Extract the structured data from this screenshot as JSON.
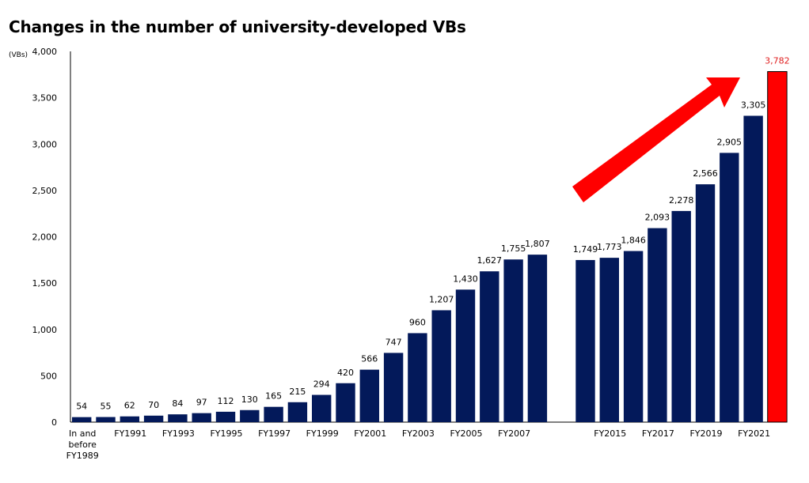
{
  "chart_data": {
    "type": "bar",
    "title": "Changes in the number of university-developed VBs",
    "ylabel": "(VBs)",
    "xlabel": "",
    "ylim": [
      0,
      4000
    ],
    "yticks": [
      "0",
      "500",
      "1,000",
      "1,500",
      "2,000",
      "2,500",
      "3,000",
      "3,500",
      "4,000"
    ],
    "categories": [
      "In and before FY1989",
      "FY1990",
      "FY1991",
      "FY1992",
      "FY1993",
      "FY1994",
      "FY1995",
      "FY1996",
      "FY1997",
      "FY1998",
      "FY1999",
      "FY2000",
      "FY2001",
      "FY2002",
      "FY2003",
      "FY2004",
      "FY2005",
      "FY2006",
      "FY2007",
      "FY2008",
      "FY2014",
      "FY2015",
      "FY2016",
      "FY2017",
      "FY2018",
      "FY2019",
      "FY2020",
      "FY2021",
      "FY2022"
    ],
    "values": [
      54,
      55,
      62,
      70,
      84,
      97,
      112,
      130,
      165,
      215,
      294,
      420,
      566,
      747,
      960,
      1207,
      1430,
      1627,
      1755,
      1807,
      1749,
      1773,
      1846,
      2093,
      2278,
      2566,
      2905,
      3305,
      3782
    ],
    "data_labels": [
      "54",
      "55",
      "62",
      "70",
      "84",
      "97",
      "112",
      "130",
      "165",
      "215",
      "294",
      "420",
      "566",
      "747",
      "960",
      "1,207",
      "1,430",
      "1,627",
      "1,755",
      "1,807",
      "1,749",
      "1,773",
      "1,846",
      "2,093",
      "2,278",
      "2,566",
      "2,905",
      "3,305",
      "3,782"
    ],
    "x_tick_labels": [
      {
        "index": 0,
        "lines": [
          "In and",
          "before",
          "FY1989"
        ]
      },
      {
        "index": 2,
        "lines": [
          "FY1991"
        ]
      },
      {
        "index": 4,
        "lines": [
          "FY1993"
        ]
      },
      {
        "index": 6,
        "lines": [
          "FY1995"
        ]
      },
      {
        "index": 8,
        "lines": [
          "FY1997"
        ]
      },
      {
        "index": 10,
        "lines": [
          "FY1999"
        ]
      },
      {
        "index": 12,
        "lines": [
          "FY2001"
        ]
      },
      {
        "index": 14,
        "lines": [
          "FY2003"
        ]
      },
      {
        "index": 16,
        "lines": [
          "FY2005"
        ]
      },
      {
        "index": 18,
        "lines": [
          "FY2007"
        ]
      },
      {
        "index": 21,
        "lines": [
          "FY2015"
        ]
      },
      {
        "index": 23,
        "lines": [
          "FY2017"
        ]
      },
      {
        "index": 25,
        "lines": [
          "FY2019"
        ]
      },
      {
        "index": 27,
        "lines": [
          "FY2021"
        ]
      }
    ],
    "gap_after_index": 19,
    "highlight_index": 28,
    "grid": false,
    "legend": "none",
    "annotations": [
      {
        "type": "arrow",
        "description": "rising trend",
        "color": "#ff0000"
      }
    ],
    "colors": {
      "bar": "#03195a",
      "highlight_bar": "#ff0000",
      "highlight_label": "#e02020",
      "arrow": "#ff0000",
      "axis": "#000000",
      "text": "#000000"
    }
  }
}
